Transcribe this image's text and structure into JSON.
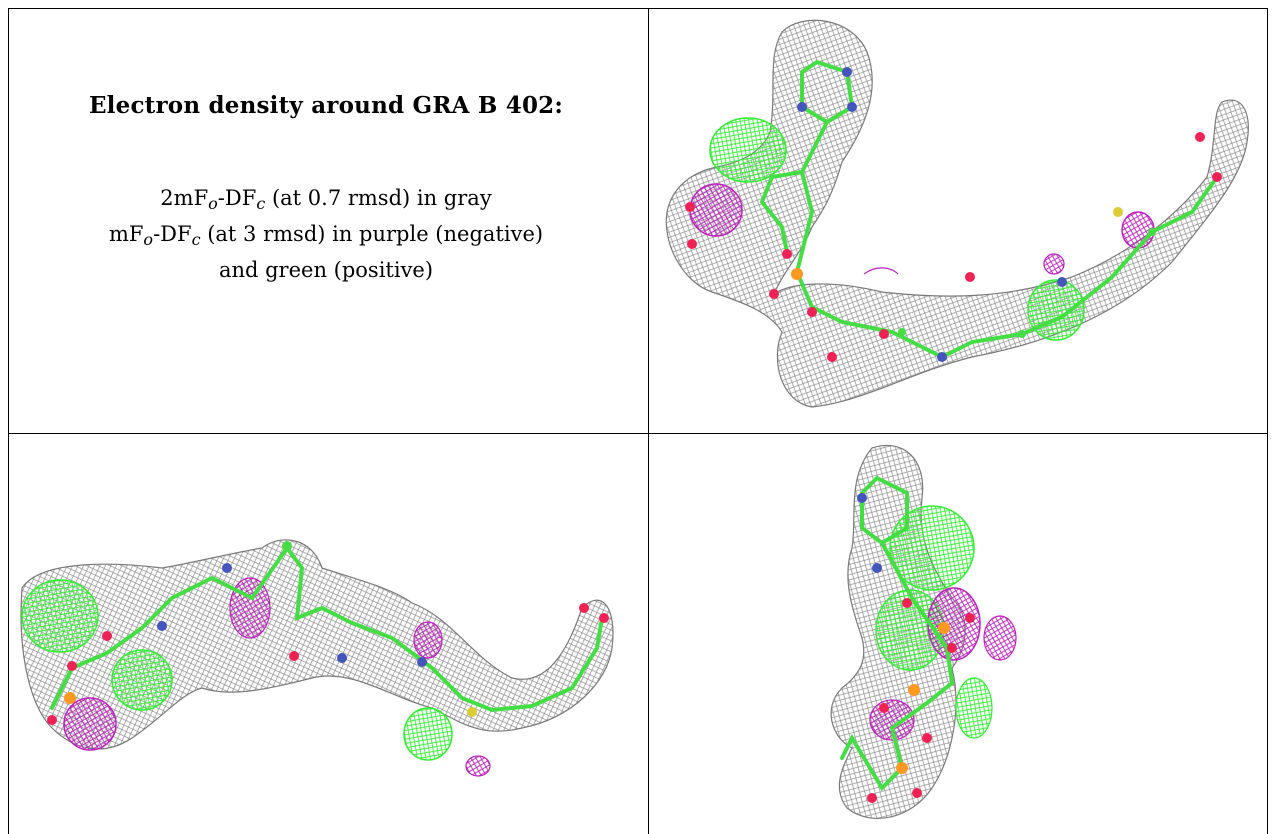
{
  "caption": {
    "title": "Electron density around GRA B 402:",
    "line1": {
      "pre": "2mF",
      "sub1": "o",
      "mid": "-DF",
      "sub2": "c",
      "post": " (at 0.7 rmsd) in gray"
    },
    "line2": {
      "pre": "mF",
      "sub1": "o",
      "mid": "-DF",
      "sub2": "c",
      "post": " (at 3 rmsd) in purple (negative)"
    },
    "line3": "and green (positive)"
  },
  "colors": {
    "mesh": "#8c8c8c",
    "positive": "#33ee33",
    "negative": "#bb22bb",
    "carbon": "#44dd44",
    "oxygen": "#ee2255",
    "nitrogen": "#4455bb",
    "phosphorus": "#ff9922",
    "sulfur": "#ddcc33"
  },
  "panels": [
    {
      "name": "view-top-right"
    },
    {
      "name": "view-bottom-left"
    },
    {
      "name": "view-bottom-right"
    }
  ]
}
